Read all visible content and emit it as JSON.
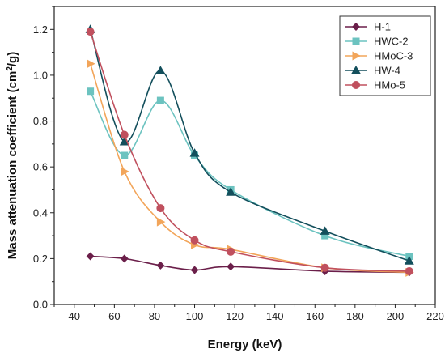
{
  "chart_data": {
    "type": "line",
    "xlabel": "Energy (keV)",
    "ylabel_main": "Mass attenuation coefficient (cm",
    "ylabel_sup": "2",
    "ylabel_end": "/g)",
    "xlim": [
      30,
      220
    ],
    "ylim": [
      0.0,
      1.3
    ],
    "x_ticks": [
      40,
      60,
      80,
      100,
      120,
      140,
      160,
      180,
      200,
      220
    ],
    "y_ticks": [
      0.0,
      0.2,
      0.4,
      0.6,
      0.8,
      1.0,
      1.2
    ],
    "y_tick_labels": [
      "0.0",
      "0.2",
      "0.4",
      "0.6",
      "0.8",
      "1.0",
      "1.2"
    ],
    "grid": false,
    "legend_position": "top-right",
    "series": [
      {
        "name": "H-1",
        "color": "#6b1f4a",
        "marker": "diamond",
        "x": [
          48,
          65,
          83,
          100,
          118,
          165,
          207
        ],
        "y": [
          0.21,
          0.2,
          0.17,
          0.15,
          0.165,
          0.145,
          0.14
        ]
      },
      {
        "name": "HWC-2",
        "color": "#6cc3c0",
        "marker": "square",
        "x": [
          48,
          65,
          83,
          100,
          118,
          165,
          207
        ],
        "y": [
          0.93,
          0.65,
          0.89,
          0.65,
          0.5,
          0.3,
          0.21
        ]
      },
      {
        "name": "HMoC-3",
        "color": "#f2a55a",
        "marker": "triangle-right",
        "x": [
          48,
          65,
          83,
          100,
          118,
          165,
          207
        ],
        "y": [
          1.05,
          0.58,
          0.36,
          0.26,
          0.24,
          0.16,
          0.14
        ]
      },
      {
        "name": "HW-4",
        "color": "#134f5c",
        "marker": "triangle-up",
        "x": [
          48,
          65,
          83,
          100,
          118,
          165,
          207
        ],
        "y": [
          1.2,
          0.71,
          1.02,
          0.66,
          0.49,
          0.32,
          0.19
        ]
      },
      {
        "name": "HMo-5",
        "color": "#c0505e",
        "marker": "circle",
        "x": [
          48,
          65,
          83,
          100,
          118,
          165,
          207
        ],
        "y": [
          1.19,
          0.74,
          0.42,
          0.28,
          0.23,
          0.16,
          0.145
        ]
      }
    ]
  }
}
